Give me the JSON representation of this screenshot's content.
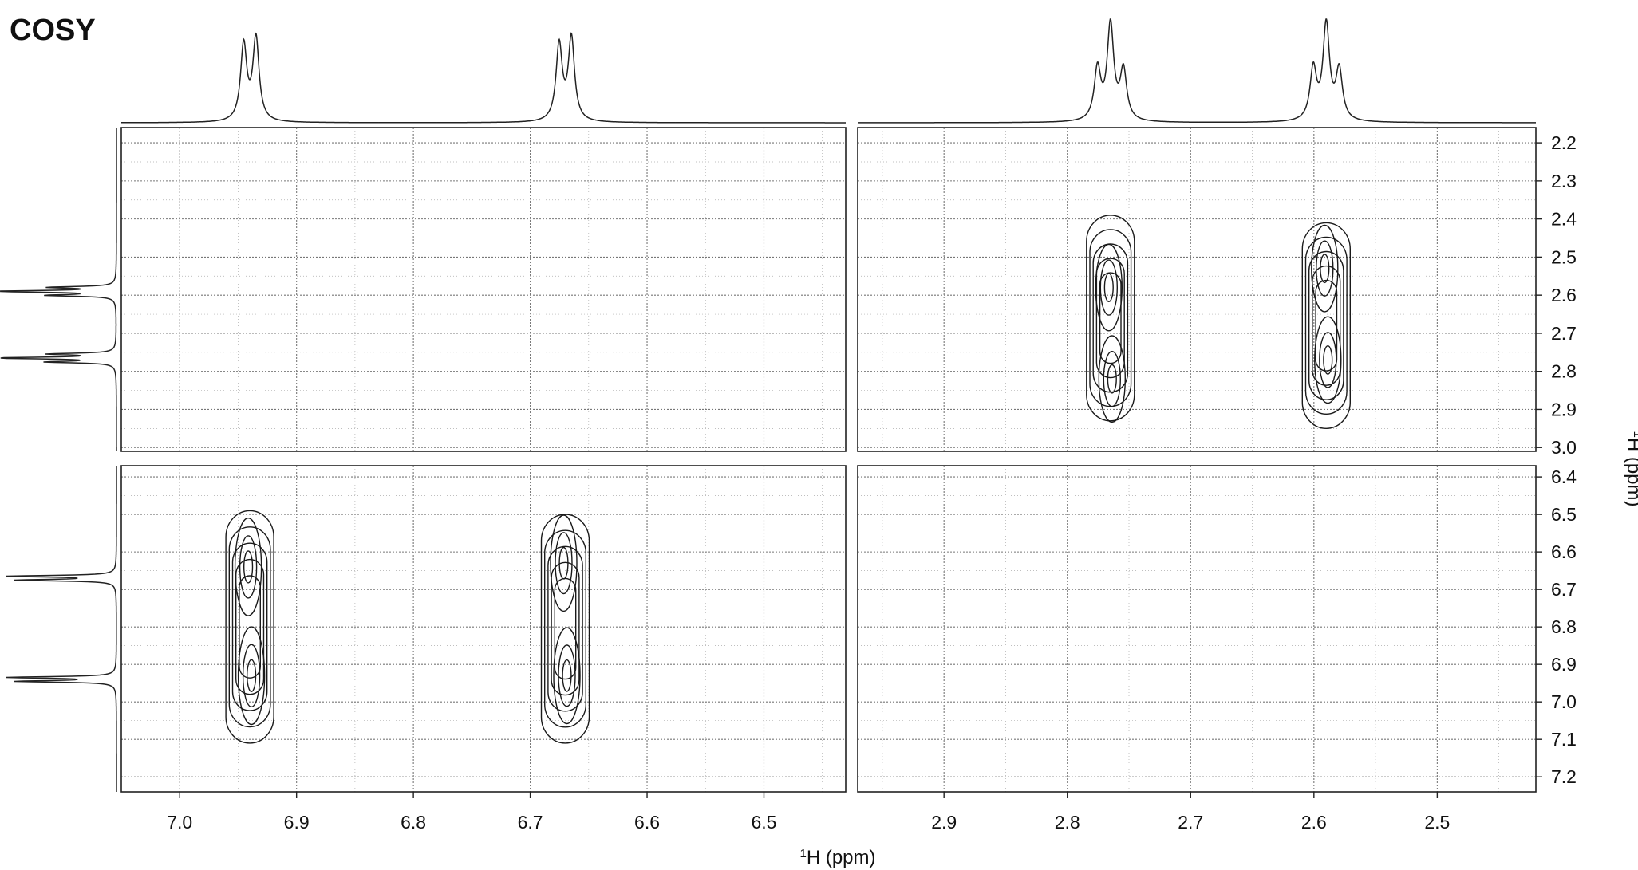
{
  "chart_data": {
    "type": "contour",
    "title": "COSY",
    "xlabel": "1H (ppm)",
    "ylabel": "1H (ppm)",
    "grid": true,
    "x_axis": {
      "reversed": true,
      "segments": [
        {
          "range": [
            7.05,
            6.43
          ],
          "ticks": [
            "7.0",
            "6.9",
            "6.8",
            "6.7",
            "6.6",
            "6.5"
          ]
        },
        {
          "range": [
            2.97,
            2.42
          ],
          "ticks": [
            "2.9",
            "2.8",
            "2.7",
            "2.6",
            "2.5"
          ]
        }
      ]
    },
    "y_axis": {
      "segments": [
        {
          "range": [
            2.16,
            3.01
          ],
          "ticks": [
            "2.2",
            "2.3",
            "2.4",
            "2.5",
            "2.6",
            "2.7",
            "2.8",
            "2.9",
            "3.0"
          ]
        },
        {
          "range": [
            6.37,
            7.24
          ],
          "ticks": [
            "6.4",
            "6.5",
            "6.6",
            "6.7",
            "6.8",
            "6.9",
            "7.0",
            "7.1",
            "7.2"
          ]
        }
      ]
    },
    "projection_top": [
      {
        "shift": 6.94,
        "multiplicity": "doublet"
      },
      {
        "shift": 6.67,
        "multiplicity": "doublet"
      },
      {
        "shift": 2.765,
        "multiplicity": "triplet"
      },
      {
        "shift": 2.59,
        "multiplicity": "triplet"
      }
    ],
    "projection_left": [
      {
        "shift": 2.59,
        "multiplicity": "triplet"
      },
      {
        "shift": 2.765,
        "multiplicity": "triplet"
      },
      {
        "shift": 6.67,
        "multiplicity": "doublet"
      },
      {
        "shift": 6.94,
        "multiplicity": "doublet"
      }
    ],
    "cross_peaks": [
      {
        "x": 6.94,
        "y_range": [
          6.49,
          7.11
        ],
        "lobes_y": [
          6.64,
          6.93
        ],
        "type": "diagonal"
      },
      {
        "x": 6.67,
        "y_range": [
          6.5,
          7.11
        ],
        "lobes_y": [
          6.63,
          6.93
        ],
        "type": "diagonal"
      },
      {
        "x": 2.765,
        "y_range": [
          2.39,
          2.93
        ],
        "lobes_y": [
          2.58,
          2.82
        ],
        "type": "diagonal"
      },
      {
        "x": 2.59,
        "y_range": [
          2.41,
          2.95
        ],
        "lobes_y": [
          2.53,
          2.77
        ],
        "type": "diagonal"
      }
    ]
  }
}
